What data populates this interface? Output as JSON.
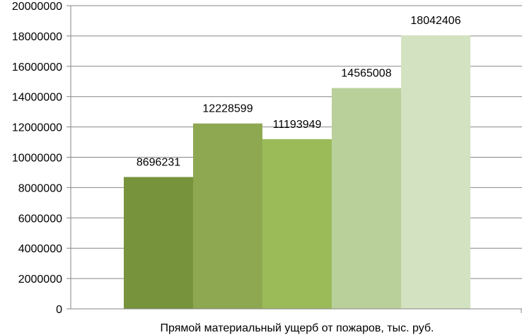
{
  "chart_data": {
    "type": "bar",
    "title": "",
    "xlabel": "Прямой материальный ущерб от пожаров, тыс. руб.",
    "ylabel": "",
    "ylim": [
      0,
      20000000
    ],
    "yticks": [
      0,
      2000000,
      4000000,
      6000000,
      8000000,
      10000000,
      12000000,
      14000000,
      16000000,
      18000000,
      20000000
    ],
    "grid": true,
    "legend": "none",
    "values": [
      8696231,
      12228599,
      11193949,
      14565008,
      18042406
    ],
    "colors": [
      "#77933c",
      "#8ea852",
      "#9bbb59",
      "#bad09b",
      "#d3e2c0"
    ],
    "data_labels": [
      "8696231",
      "12228599",
      "11193949",
      "14565008",
      "18042406"
    ]
  }
}
